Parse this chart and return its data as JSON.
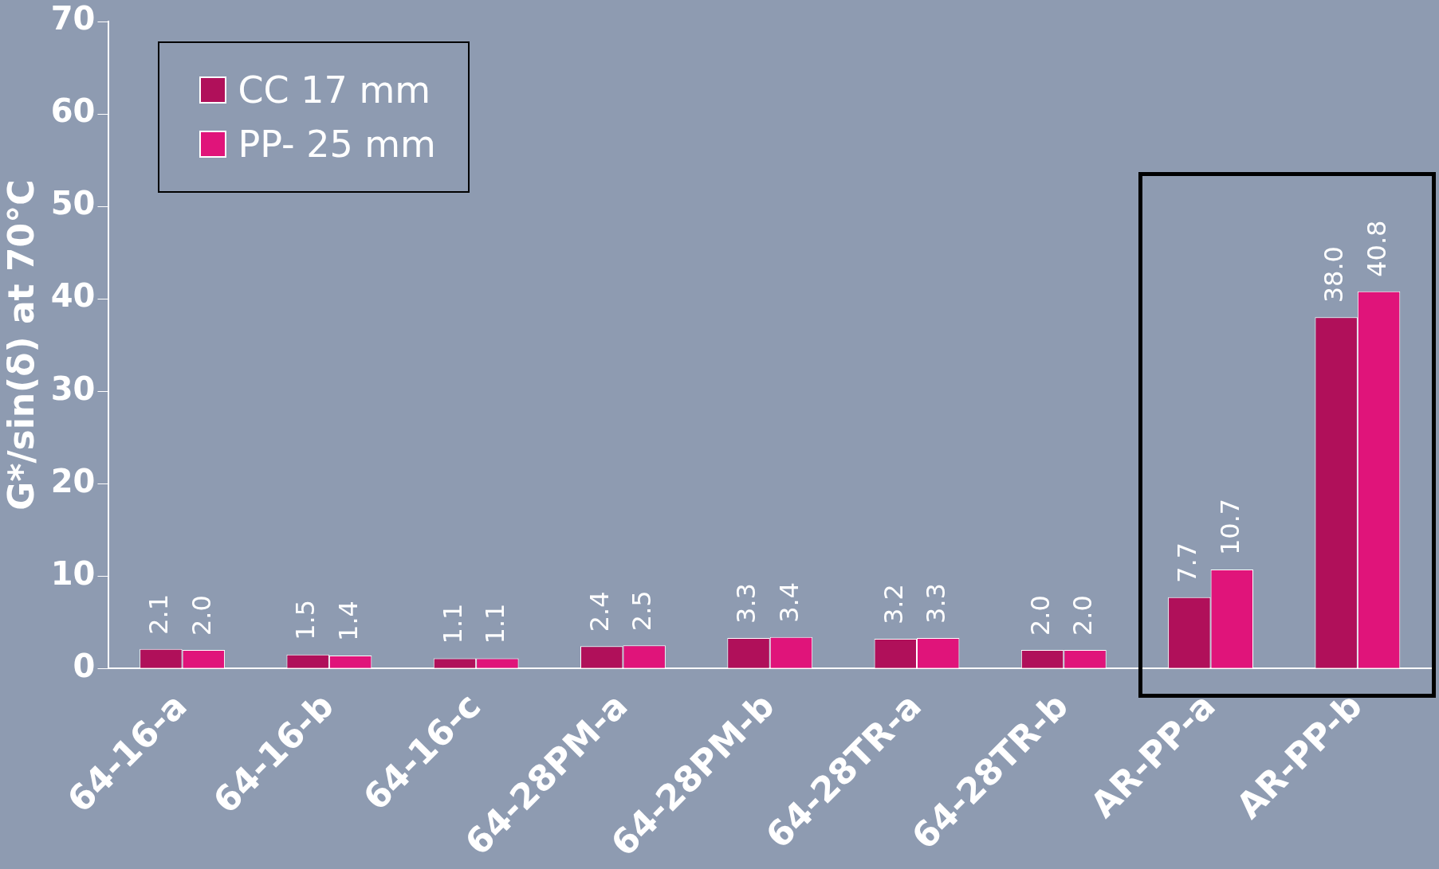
{
  "chart_data": {
    "type": "bar",
    "ylabel": "G*/sin(δ) at 70°C",
    "categories": [
      "64-16-a",
      "64-16-b",
      "64-16-c",
      "64-28PM-a",
      "64-28PM-b",
      "64-28TR-a",
      "64-28TR-b",
      "AR-PP-a",
      "AR-PP-b"
    ],
    "series": [
      {
        "name": "CC 17 mm",
        "color": "#b0105a",
        "values": [
          2.1,
          1.5,
          1.1,
          2.4,
          3.3,
          3.2,
          2.0,
          7.7,
          38.0
        ],
        "value_labels": [
          "2.1",
          "1.5",
          "1.1",
          "2.4",
          "3.3",
          "3.2",
          "2.0",
          "7.7",
          "38.0"
        ]
      },
      {
        "name": "PP- 25 mm",
        "color": "#e0147a",
        "values": [
          2.0,
          1.4,
          1.1,
          2.5,
          3.4,
          3.3,
          2.0,
          10.7,
          40.8
        ],
        "value_labels": [
          "2.0",
          "1.4",
          "1.1",
          "2.5",
          "3.4",
          "3.3",
          "2.0",
          "10.7",
          "40.8"
        ]
      }
    ],
    "ylim": [
      0,
      70
    ],
    "yticks": [
      0,
      10,
      20,
      30,
      40,
      50,
      60,
      70
    ],
    "grid": false,
    "legend": "top left"
  }
}
